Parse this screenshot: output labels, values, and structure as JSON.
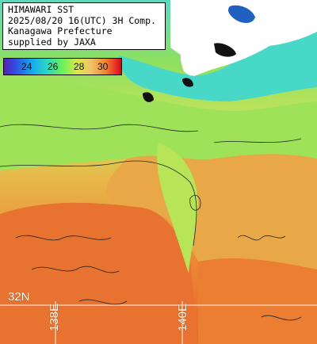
{
  "header": {
    "line1": "HIMAWARI SST",
    "line2": "2025/08/20 16(UTC) 3H Comp.",
    "line3": "Kanagawa Prefecture",
    "line4": "supplied by JAXA"
  },
  "legend": {
    "ticks": [
      "24",
      "26",
      "28",
      "30"
    ],
    "colors": [
      "#5a1fb8",
      "#2f4fe0",
      "#18a8f0",
      "#29d6c6",
      "#6cf05a",
      "#d8e84a",
      "#f0c46a",
      "#f0882e",
      "#e8282a",
      "#c81010"
    ]
  },
  "grid_labels": {
    "lat": "32N",
    "lon1": "138E",
    "lon2": "140E"
  },
  "colors": {
    "land": "#ffffff",
    "cloud": "#111111",
    "warm_sea": "#e8722f",
    "mid_sea": "#e8b84a",
    "cool_sea": "#8ee060",
    "cold_sea": "#30c8d8"
  }
}
